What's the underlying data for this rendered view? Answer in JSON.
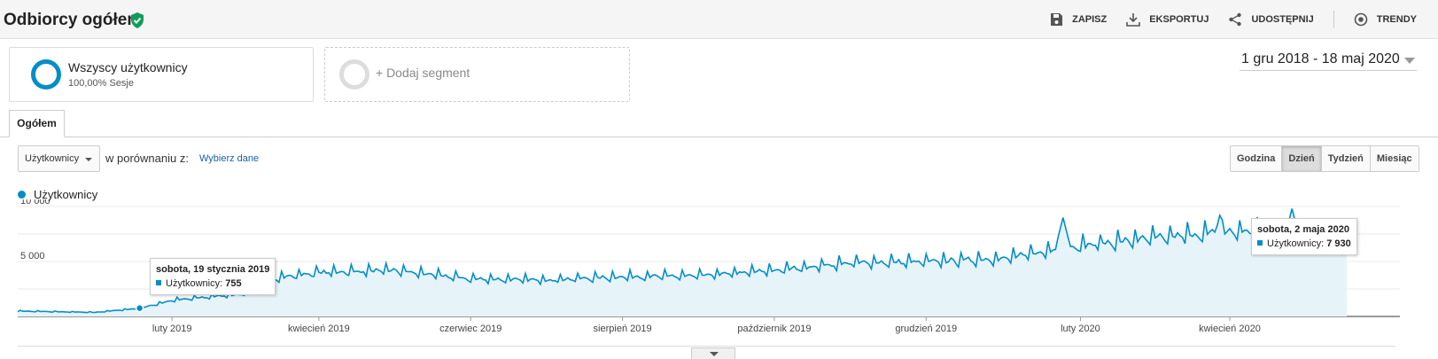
{
  "header": {
    "title": "Odbiorcy ogółem",
    "actions": [
      {
        "label": "ZAPISZ",
        "icon": "save-icon"
      },
      {
        "label": "EKSPORTUJ",
        "icon": "download-icon"
      },
      {
        "label": "UDOSTĘPNIJ",
        "icon": "share-icon"
      },
      {
        "label": "TRENDY",
        "icon": "insights-icon"
      }
    ]
  },
  "segments": {
    "active": {
      "name": "Wszyscy użytkownicy",
      "sub": "100,00% Sesje"
    },
    "add_label": "+ Dodaj segment"
  },
  "date_range": "1 gru 2018 - 18 maj 2020",
  "tab": "Ogółem",
  "controls": {
    "metric": "Użytkownicy",
    "compare_label": "w porównaniu z:",
    "pick_label": "Wybierz dane",
    "granularity": [
      "Godzina",
      "Dzień",
      "Tydzień",
      "Miesiąc"
    ],
    "active_granularity": "Dzień"
  },
  "legend": {
    "label": "Użytkownicy"
  },
  "tooltips": [
    {
      "date": "sobota, 19 stycznia 2019",
      "metric": "Użytkownicy:",
      "value": "755"
    },
    {
      "date": "sobota, 2 maja 2020",
      "metric": "Użytkownicy:",
      "value": "7 930"
    }
  ],
  "colors": {
    "series": "#058dc7",
    "fill": "#e6f4fa",
    "accent_green": "#0f9d58"
  },
  "chart_data": {
    "type": "area",
    "series": [
      {
        "name": "Użytkownicy",
        "color": "#058dc7"
      }
    ],
    "x_range": [
      "2018-12-01",
      "2020-05-18"
    ],
    "ylim": [
      0,
      10000
    ],
    "y_ticks": [
      "5 000",
      "10 000"
    ],
    "x_ticks": [
      "luty 2019",
      "kwiecień 2019",
      "czerwiec 2019",
      "sierpień 2019",
      "październik 2019",
      "grudzień 2019",
      "luty 2020",
      "kwiecień 2020"
    ],
    "weekly_trend": [
      {
        "date": "2018-12-01",
        "value": 500
      },
      {
        "date": "2019-01-01",
        "value": 380
      },
      {
        "date": "2019-01-19",
        "value": 755
      },
      {
        "date": "2019-02-01",
        "value": 1500
      },
      {
        "date": "2019-03-01",
        "value": 2100
      },
      {
        "date": "2019-03-15",
        "value": 3600
      },
      {
        "date": "2019-04-01",
        "value": 4100
      },
      {
        "date": "2019-05-01",
        "value": 4300
      },
      {
        "date": "2019-06-01",
        "value": 3500
      },
      {
        "date": "2019-07-01",
        "value": 3400
      },
      {
        "date": "2019-08-01",
        "value": 3700
      },
      {
        "date": "2019-09-01",
        "value": 3800
      },
      {
        "date": "2019-10-01",
        "value": 4300
      },
      {
        "date": "2019-11-01",
        "value": 5000
      },
      {
        "date": "2019-12-01",
        "value": 5100
      },
      {
        "date": "2020-01-01",
        "value": 5400
      },
      {
        "date": "2020-02-01",
        "value": 6600
      },
      {
        "date": "2020-03-01",
        "value": 7300
      },
      {
        "date": "2020-04-01",
        "value": 7900
      },
      {
        "date": "2020-05-02",
        "value": 7930
      },
      {
        "date": "2020-05-18",
        "value": 6200
      }
    ],
    "peaks": [
      {
        "date": "2020-01-25",
        "value": 9000
      },
      {
        "date": "2020-03-28",
        "value": 9200
      },
      {
        "date": "2020-04-26",
        "value": 9800
      }
    ],
    "grid": true
  }
}
